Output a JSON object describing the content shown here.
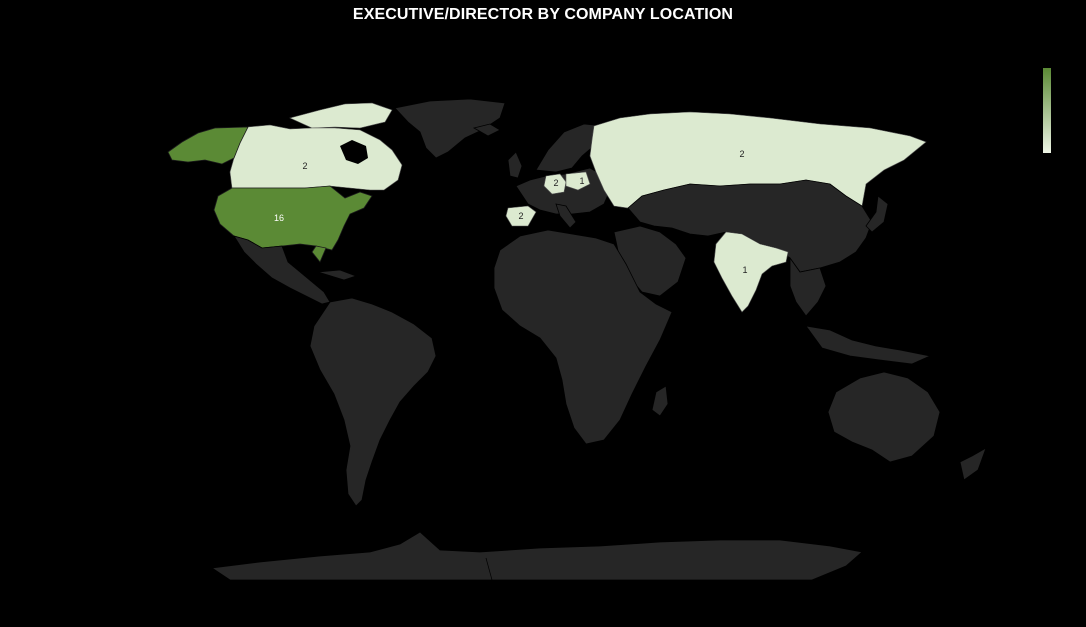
{
  "title": "EXECUTIVE/DIRECTOR BY COMPANY LOCATION",
  "colors": {
    "background": "#000000",
    "land": "#262626",
    "high": "#5b8a35",
    "low": "#dcead0"
  },
  "chart_data": {
    "type": "choropleth",
    "regions": [
      {
        "country": "United States",
        "value": 16
      },
      {
        "country": "Canada",
        "value": 2
      },
      {
        "country": "Russia",
        "value": 2
      },
      {
        "country": "Germany",
        "value": 2
      },
      {
        "country": "Poland",
        "value": 1
      },
      {
        "country": "Spain",
        "value": 2
      },
      {
        "country": "India",
        "value": 1
      }
    ],
    "legend": {
      "type": "color-scale",
      "placement": "top-right",
      "min_color": "#dcead0",
      "max_color": "#5b8a35"
    }
  }
}
